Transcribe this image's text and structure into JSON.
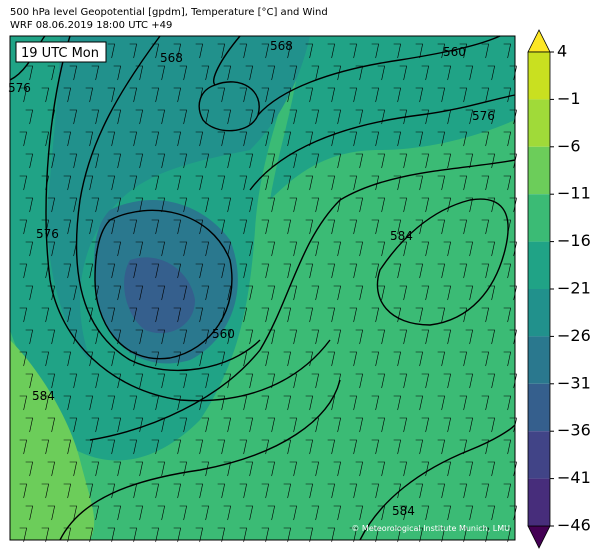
{
  "header": {
    "line1": "500 hPa level Geopotential [gpdm], Temperature [°C] and Wind",
    "line2": "WRF 08.06.2019 18:00 UTC +49"
  },
  "map": {
    "time_label": "19 UTC Mon",
    "contour_labels": [
      "576",
      "568",
      "560",
      "576",
      "576",
      "584",
      "560",
      "584",
      "568",
      "584"
    ],
    "credit": "© Meteorological Institute Munich, LMU"
  },
  "colorbar": {
    "ticks": [
      {
        "value": 4,
        "label": "4"
      },
      {
        "value": -1,
        "label": "−1"
      },
      {
        "value": -6,
        "label": "−6"
      },
      {
        "value": -11,
        "label": "−11"
      },
      {
        "value": -16,
        "label": "−16"
      },
      {
        "value": -21,
        "label": "−21"
      },
      {
        "value": -26,
        "label": "−26"
      },
      {
        "value": -31,
        "label": "−31"
      },
      {
        "value": -36,
        "label": "−36"
      },
      {
        "value": -41,
        "label": "−41"
      },
      {
        "value": -46,
        "label": "−46"
      }
    ],
    "colors": [
      "#c9e020",
      "#a0da39",
      "#6ccd5a",
      "#3bbb75",
      "#20a386",
      "#21918c",
      "#2a788e",
      "#355f8d",
      "#414487",
      "#472d7b"
    ],
    "over_color": "#fde725",
    "under_color": "#440154"
  }
}
